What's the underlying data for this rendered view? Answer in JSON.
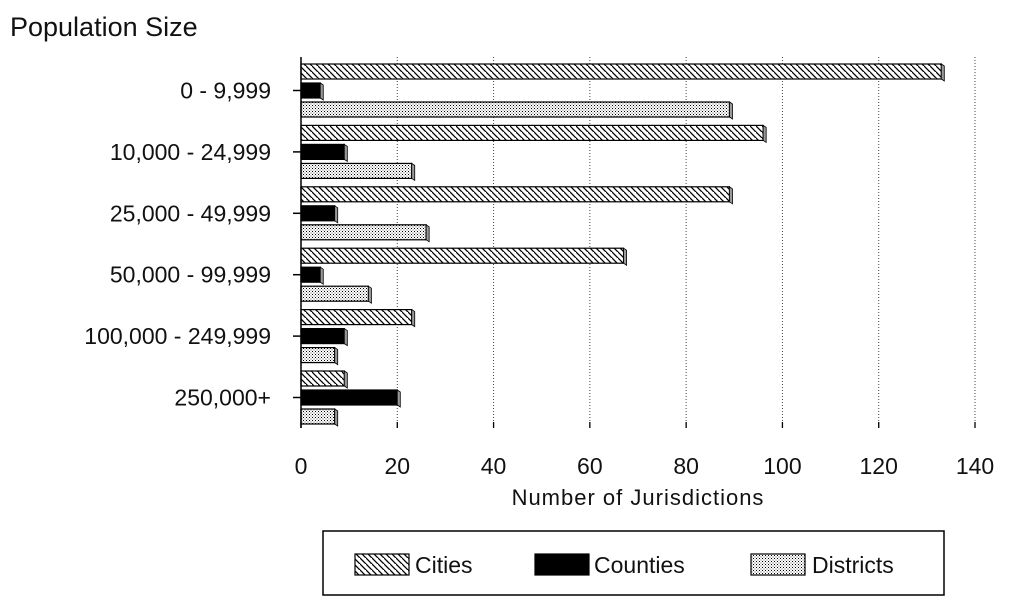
{
  "chart_data": {
    "type": "bar",
    "orientation": "horizontal",
    "title": "Population Size",
    "xlabel": "Number of Jurisdictions",
    "ylabel": "",
    "categories": [
      "0 - 9,999",
      "10,000 - 24,999",
      "25,000 - 49,999",
      "50,000 - 99,999",
      "100,000 - 249,999",
      "250,000+"
    ],
    "series": [
      {
        "name": "Cities",
        "values": [
          133,
          96,
          89,
          67,
          23,
          9
        ]
      },
      {
        "name": "Counties",
        "values": [
          4,
          9,
          7,
          4,
          9,
          20
        ]
      },
      {
        "name": "Districts",
        "values": [
          89,
          23,
          26,
          14,
          7,
          7
        ]
      }
    ],
    "xlim": [
      0,
      140
    ],
    "xticks": [
      "0",
      "20",
      "40",
      "60",
      "80",
      "100",
      "120",
      "140"
    ],
    "grid": "vertical dotted",
    "legend_position": "bottom"
  }
}
